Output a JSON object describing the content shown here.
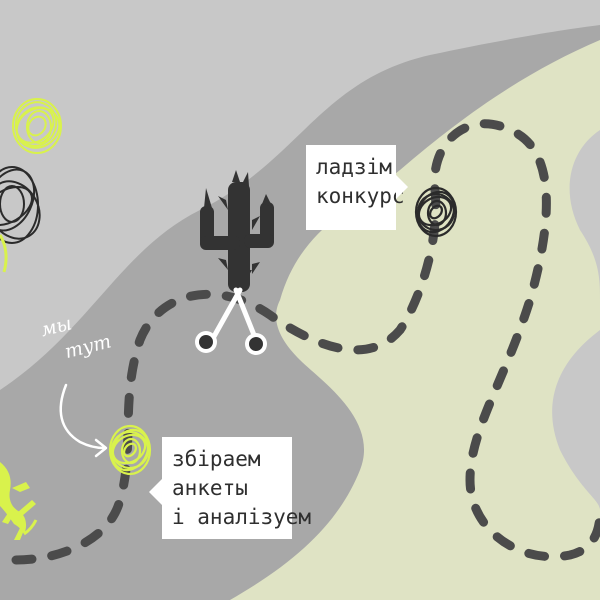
{
  "colors": {
    "background": "#c8c8c8",
    "dark_band": "#a8a8a8",
    "light_green_area": "#dfe3c4",
    "path_dash": "#4b4b4b",
    "yellow_scribble": "#d9f24c",
    "black_scribble": "#2b2b2b",
    "cactus": "#333333",
    "callout_bg": "#ffffff",
    "callout_text": "#2f2f2f",
    "handwriting": "#ffffff"
  },
  "icons": [
    "cactus-icon",
    "scissors-icon",
    "lizard-icon",
    "arrow-icon"
  ],
  "handwriting": {
    "line1": "мы",
    "line2": "тут"
  },
  "callout_contest": {
    "line1": "ладзім",
    "line2": "конкурс"
  },
  "callout_survey": {
    "line1": "збіраем",
    "line2": "анкеты",
    "line3": "і аналізуем"
  }
}
